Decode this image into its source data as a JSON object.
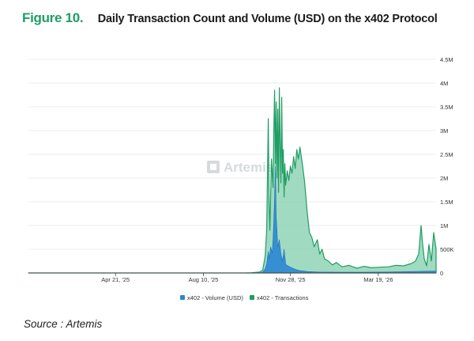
{
  "figure": {
    "label": "Figure 10.",
    "title": "Daily Transaction Count and Volume (USD) on the x402 Protocol"
  },
  "watermark": {
    "text": "Artemis",
    "icon": "artemis-logo-icon"
  },
  "source": "Source : Artemis",
  "colors": {
    "transactions_fill": "#8fd3b6",
    "transactions_line": "#1f9d63",
    "volume_fill": "#2a86d4",
    "grid": "#e6e6e6",
    "axis": "#444444",
    "title_accent": "#1f9d63"
  },
  "chart_data": {
    "type": "area",
    "title": "Daily Transaction Count and Volume (USD) on the x402 Protocol",
    "x_range": [
      "2025-01-01",
      "2026-05-31"
    ],
    "x_ticks": [
      {
        "date": "2025-04-21",
        "label": "Apr 21, '25"
      },
      {
        "date": "2025-08-10",
        "label": "Aug 10, '25"
      },
      {
        "date": "2025-11-28",
        "label": "Nov 28, '25"
      },
      {
        "date": "2026-03-19",
        "label": "Mar 19, '26"
      }
    ],
    "y_range": [
      0,
      4500000
    ],
    "y_ticks": [
      {
        "value": 0,
        "label": "0"
      },
      {
        "value": 500000,
        "label": "500K"
      },
      {
        "value": 1000000,
        "label": "1M"
      },
      {
        "value": 1500000,
        "label": "1.5M"
      },
      {
        "value": 2000000,
        "label": "2M"
      },
      {
        "value": 2500000,
        "label": "2.5M"
      },
      {
        "value": 3000000,
        "label": "3M"
      },
      {
        "value": 3500000,
        "label": "3.5M"
      },
      {
        "value": 4000000,
        "label": "4M"
      },
      {
        "value": 4500000,
        "label": "4.5M"
      }
    ],
    "grid": true,
    "legend_position": "bottom",
    "series": [
      {
        "name": "x402 - Transactions",
        "color": "#1f9d63",
        "points": [
          [
            "2025-01-01",
            0
          ],
          [
            "2025-10-01",
            0
          ],
          [
            "2025-10-10",
            5000
          ],
          [
            "2025-10-20",
            20000
          ],
          [
            "2025-10-24",
            60000
          ],
          [
            "2025-10-27",
            350000
          ],
          [
            "2025-10-29",
            900000
          ],
          [
            "2025-10-31",
            3250000
          ],
          [
            "2025-11-01",
            1500000
          ],
          [
            "2025-11-02",
            900000
          ],
          [
            "2025-11-04",
            2400000
          ],
          [
            "2025-11-06",
            1800000
          ],
          [
            "2025-11-07",
            3000000
          ],
          [
            "2025-11-08",
            3850000
          ],
          [
            "2025-11-09",
            2300000
          ],
          [
            "2025-11-10",
            3600000
          ],
          [
            "2025-11-11",
            2000000
          ],
          [
            "2025-11-12",
            3450000
          ],
          [
            "2025-11-13",
            1700000
          ],
          [
            "2025-11-14",
            3900000
          ],
          [
            "2025-11-15",
            2700000
          ],
          [
            "2025-11-16",
            1900000
          ],
          [
            "2025-11-17",
            3700000
          ],
          [
            "2025-11-18",
            2100000
          ],
          [
            "2025-11-19",
            2600000
          ],
          [
            "2025-11-20",
            1600000
          ],
          [
            "2025-11-21",
            2300000
          ],
          [
            "2025-11-22",
            1850000
          ],
          [
            "2025-11-24",
            2150000
          ],
          [
            "2025-11-26",
            1950000
          ],
          [
            "2025-11-28",
            2250000
          ],
          [
            "2025-11-30",
            2100000
          ],
          [
            "2025-12-02",
            2450000
          ],
          [
            "2025-12-04",
            2200000
          ],
          [
            "2025-12-06",
            2600000
          ],
          [
            "2025-12-08",
            2400000
          ],
          [
            "2025-12-10",
            2650000
          ],
          [
            "2025-12-13",
            2300000
          ],
          [
            "2025-12-16",
            1900000
          ],
          [
            "2025-12-19",
            1300000
          ],
          [
            "2025-12-22",
            850000
          ],
          [
            "2025-12-25",
            750000
          ],
          [
            "2025-12-28",
            550000
          ],
          [
            "2026-01-01",
            700000
          ],
          [
            "2026-01-04",
            400000
          ],
          [
            "2026-01-07",
            500000
          ],
          [
            "2026-01-10",
            300000
          ],
          [
            "2026-01-15",
            250000
          ],
          [
            "2026-01-20",
            170000
          ],
          [
            "2026-01-25",
            220000
          ],
          [
            "2026-02-01",
            130000
          ],
          [
            "2026-02-10",
            160000
          ],
          [
            "2026-02-20",
            100000
          ],
          [
            "2026-03-01",
            140000
          ],
          [
            "2026-03-10",
            110000
          ],
          [
            "2026-03-19",
            120000
          ],
          [
            "2026-04-01",
            130000
          ],
          [
            "2026-04-10",
            160000
          ],
          [
            "2026-04-20",
            150000
          ],
          [
            "2026-04-30",
            200000
          ],
          [
            "2026-05-05",
            250000
          ],
          [
            "2026-05-09",
            400000
          ],
          [
            "2026-05-12",
            1000000
          ],
          [
            "2026-05-14",
            600000
          ],
          [
            "2026-05-16",
            300000
          ],
          [
            "2026-05-19",
            150000
          ],
          [
            "2026-05-22",
            600000
          ],
          [
            "2026-05-25",
            250000
          ],
          [
            "2026-05-28",
            850000
          ],
          [
            "2026-05-31",
            500000
          ]
        ]
      },
      {
        "name": "x402 - Volume (USD)",
        "color": "#2a86d4",
        "points": [
          [
            "2025-01-01",
            0
          ],
          [
            "2025-10-20",
            0
          ],
          [
            "2025-10-24",
            20000
          ],
          [
            "2025-10-27",
            80000
          ],
          [
            "2025-10-29",
            200000
          ],
          [
            "2025-10-31",
            450000
          ],
          [
            "2025-11-01",
            300000
          ],
          [
            "2025-11-03",
            550000
          ],
          [
            "2025-11-05",
            420000
          ],
          [
            "2025-11-06",
            700000
          ],
          [
            "2025-11-07",
            1100000
          ],
          [
            "2025-11-08",
            1600000
          ],
          [
            "2025-11-09",
            2250000
          ],
          [
            "2025-11-10",
            1200000
          ],
          [
            "2025-11-11",
            900000
          ],
          [
            "2025-11-12",
            550000
          ],
          [
            "2025-11-14",
            700000
          ],
          [
            "2025-11-16",
            400000
          ],
          [
            "2025-11-18",
            250000
          ],
          [
            "2025-11-20",
            500000
          ],
          [
            "2025-11-22",
            180000
          ],
          [
            "2025-11-25",
            150000
          ],
          [
            "2025-11-28",
            120000
          ],
          [
            "2025-12-01",
            100000
          ],
          [
            "2025-12-05",
            70000
          ],
          [
            "2025-12-10",
            50000
          ],
          [
            "2025-12-20",
            30000
          ],
          [
            "2026-01-01",
            20000
          ],
          [
            "2026-02-01",
            15000
          ],
          [
            "2026-03-01",
            15000
          ],
          [
            "2026-04-01",
            20000
          ],
          [
            "2026-05-01",
            30000
          ],
          [
            "2026-05-31",
            40000
          ]
        ]
      }
    ]
  }
}
